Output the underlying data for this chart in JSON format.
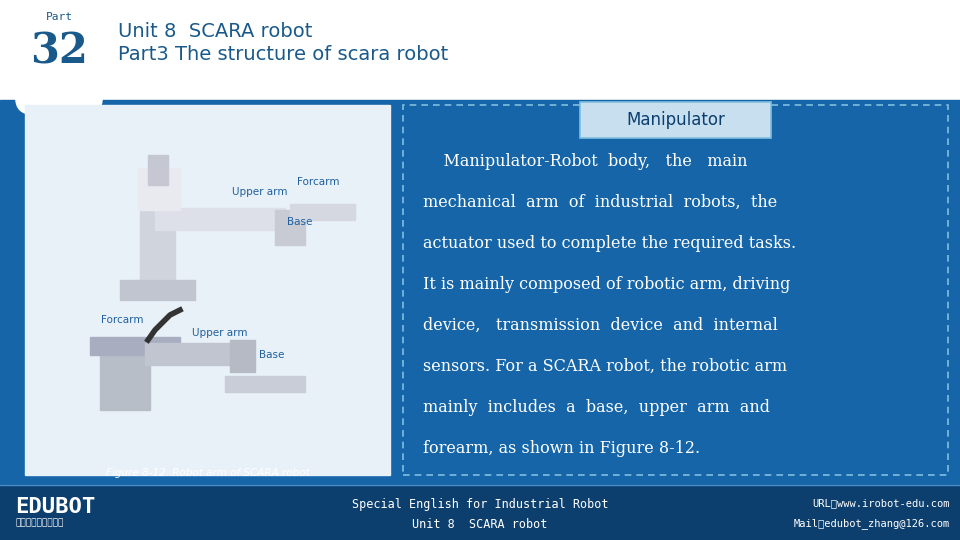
{
  "bg_color": "#1565a8",
  "white": "#ffffff",
  "dark_blue": "#0d3f6e",
  "mid_blue": "#1a6bb5",
  "title_part": "Part",
  "title_number": "32",
  "title_line1": "Unit 8  SCARA robot",
  "title_line2": "Part3 The structure of scara robot",
  "manipulator_label": "Manipulator",
  "body_text_lines": [
    "    Manipulator-Robot  body,   the   main",
    "mechanical  arm  of  industrial  robots,  the",
    "actuator used to complete the required tasks.",
    "It is mainly composed of robotic arm, driving",
    "device,   transmission  device  and  internal",
    "sensors. For a SCARA robot, the robotic arm",
    "mainly  includes  a  base,  upper  arm  and",
    "forearm, as shown in Figure 8-12."
  ],
  "figure_caption": "Figure 8-12  Robot arm of SCARA robot",
  "footer_logo": "EDUBOT",
  "footer_sub": "哈工海路机器人学院",
  "footer_center1": "Special English for Industrial Robot",
  "footer_center2": "Unit 8  SCARA robot",
  "footer_right1": "URL：www.irobot-edu.com",
  "footer_right2": "Mail：edubot_zhang@126.com",
  "dashed_color": "#7fbfdf",
  "manip_box_color": "#c8dff0",
  "header_text_color": "#1a5a8a",
  "img_placeholder_color": "#e8f0f8",
  "footer_bg": "#0d3f6e",
  "line_color": "#4a90d0"
}
